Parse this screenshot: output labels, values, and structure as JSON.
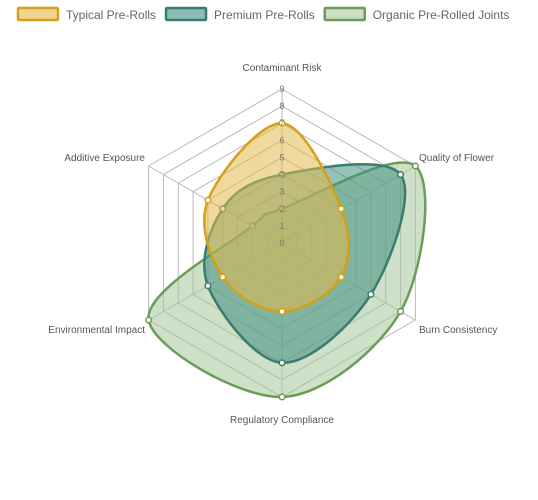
{
  "chart_data": {
    "type": "radar",
    "axes": [
      "Contaminant Risk",
      "Quality of Flower",
      "Burn Consistency",
      "Regulatory Compliance",
      "Environmental Impact",
      "Additive Exposure"
    ],
    "r_range": [
      0,
      9
    ],
    "ticks": [
      "0",
      "1",
      "2",
      "3",
      "4",
      "5",
      "6",
      "7",
      "8",
      "9"
    ],
    "grid": true,
    "legend_position": "top",
    "series": [
      {
        "name": "Typical Pre-Rolls",
        "values": [
          7,
          4,
          4,
          4,
          4,
          5
        ],
        "stroke": "#d4a017",
        "fill": "#e3b94a"
      },
      {
        "name": "Premium Pre-Rolls",
        "values": [
          4,
          8,
          6,
          7,
          5,
          4
        ],
        "stroke": "#3a7d6e",
        "fill": "#3f8f80"
      },
      {
        "name": "Organic Pre-Rolled Joints",
        "values": [
          2,
          9,
          8,
          9,
          9,
          2
        ],
        "stroke": "#6b9d58",
        "fill": "#a8c79a"
      }
    ]
  }
}
